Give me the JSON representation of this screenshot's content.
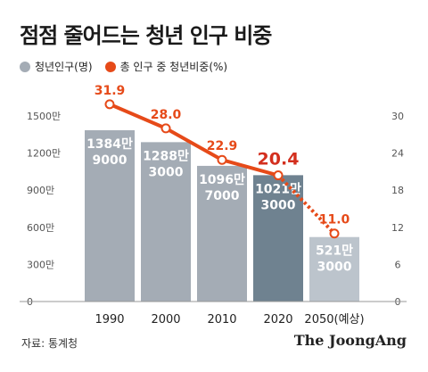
{
  "header": {
    "title": "점점 줄어드는 청년 인구 비중"
  },
  "legend": [
    {
      "label": "청년인구(명)",
      "color": "#a4acb5"
    },
    {
      "label": "총 인구 중 청년비중(%)",
      "color": "#e64a19"
    }
  ],
  "footer": {
    "source": "자료: 통계청",
    "brand": "The JoongAng"
  },
  "chart_data": {
    "type": "bar",
    "categories": [
      "1990",
      "2000",
      "2010",
      "2020",
      "2050(예상)"
    ],
    "bar_series": {
      "name": "청년인구(명)",
      "values": [
        13849000,
        12883000,
        10967000,
        10213000,
        5213000
      ],
      "labels": [
        [
          "1384만",
          "9000"
        ],
        [
          "1288만",
          "3000"
        ],
        [
          "1096만",
          "7000"
        ],
        [
          "1021만",
          "3000"
        ],
        [
          "521만",
          "3000"
        ]
      ],
      "colors": [
        "#a4acb5",
        "#a4acb5",
        "#a4acb5",
        "#6f8290",
        "#bcc4cc"
      ]
    },
    "line_series": {
      "name": "총 인구 중 청년비중(%)",
      "values": [
        31.9,
        28.0,
        22.9,
        20.4,
        11.0
      ],
      "labels": [
        "31.9",
        "28.0",
        "22.9",
        "20.4",
        "11.0"
      ],
      "color": "#e64a19",
      "projected_from_index": 3
    },
    "left_axis": {
      "ticks": [
        "0",
        "300만",
        "600만",
        "900만",
        "1200만",
        "1500만"
      ],
      "max": 15000000
    },
    "right_axis": {
      "ticks": [
        "0",
        "6",
        "12",
        "18",
        "24",
        "30"
      ],
      "max": 30
    },
    "grid": false
  }
}
